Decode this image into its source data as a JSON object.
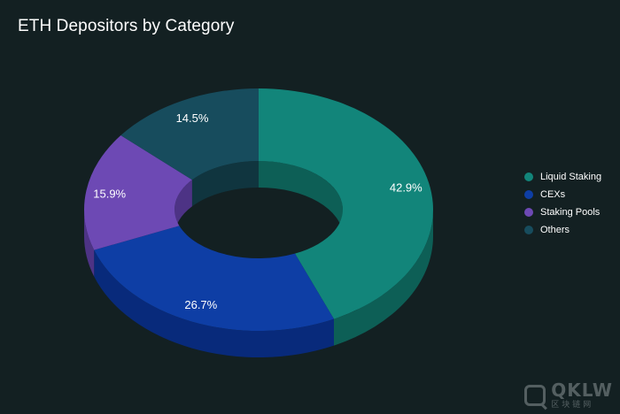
{
  "chart_data": {
    "type": "pie",
    "title": "ETH Depositors by Category",
    "categories": [
      "Liquid Staking",
      "CEXs",
      "Staking Pools",
      "Others"
    ],
    "values": [
      42.9,
      26.7,
      15.9,
      14.5
    ],
    "labels": [
      "42.9%",
      "26.7%",
      "15.9%",
      "14.5%"
    ],
    "colors": [
      "#12857a",
      "#0e3ea5",
      "#6d49b4",
      "#174c5d"
    ],
    "side_colors": [
      "#0d5f56",
      "#082a7b",
      "#4d3385",
      "#10353f"
    ],
    "legend_position": "right",
    "donut": true
  },
  "watermark": {
    "brand": "QKLW",
    "sub": "区块链网"
  }
}
